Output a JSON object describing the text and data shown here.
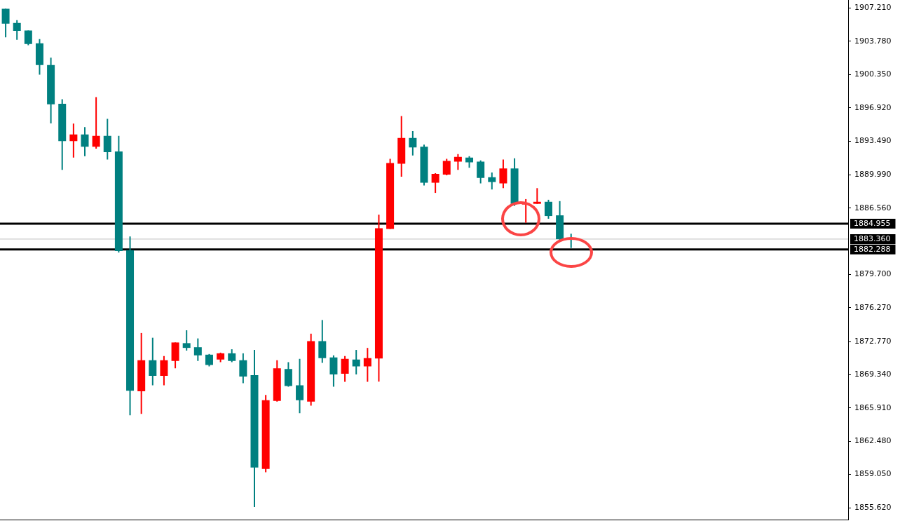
{
  "chart_data": {
    "type": "candlestick",
    "categories": [
      null,
      null,
      null,
      null,
      null,
      null,
      null,
      null,
      null,
      null,
      null,
      null,
      null,
      null,
      null,
      null,
      null,
      null,
      null,
      null,
      null,
      null,
      null,
      null,
      null,
      null,
      null,
      null,
      null,
      null,
      null,
      null,
      null,
      null,
      null,
      null,
      null,
      null,
      null,
      null,
      null,
      null,
      null,
      null,
      null,
      null,
      null,
      null,
      null,
      null,
      null,
      null,
      null,
      null,
      null,
      null,
      null,
      null,
      null,
      null,
      null,
      null,
      null,
      null,
      null,
      null,
      null,
      null,
      null,
      null,
      null,
      null,
      null,
      null,
      null
    ],
    "ohlc": [
      [
        1907.15,
        1907.15,
        1904.2,
        1905.61
      ],
      [
        1905.68,
        1905.96,
        1903.94,
        1904.86
      ],
      [
        1904.9,
        1904.9,
        1903.38,
        1903.5
      ],
      [
        1903.57,
        1904.01,
        1900.34,
        1901.34
      ],
      [
        1901.34,
        1902.1,
        1895.31,
        1897.27
      ],
      [
        1897.34,
        1897.81,
        1890.51,
        1893.48
      ],
      [
        1893.48,
        1895.29,
        1891.78,
        1894.16
      ],
      [
        1894.16,
        1894.93,
        1891.92,
        1892.9
      ],
      [
        1892.9,
        1898.02,
        1892.69,
        1894.02
      ],
      [
        1894.02,
        1895.78,
        1891.57,
        1892.34
      ],
      [
        1892.41,
        1894.02,
        1881.97,
        1882.12
      ],
      [
        1882.21,
        1883.63,
        1865.17,
        1867.7
      ],
      [
        1867.65,
        1873.66,
        1865.31,
        1870.85
      ],
      [
        1870.85,
        1873.17,
        1868.26,
        1869.24
      ],
      [
        1869.24,
        1871.28,
        1868.26,
        1870.85
      ],
      [
        1870.78,
        1872.68,
        1870.01,
        1872.68
      ],
      [
        1872.61,
        1873.94,
        1871.84,
        1872.12
      ],
      [
        1872.19,
        1873.1,
        1870.78,
        1871.35
      ],
      [
        1871.42,
        1871.49,
        1870.22,
        1870.36
      ],
      [
        1870.92,
        1871.63,
        1870.64,
        1871.56
      ],
      [
        1871.56,
        1871.98,
        1870.64,
        1870.78
      ],
      [
        1870.85,
        1871.56,
        1868.47,
        1869.17
      ],
      [
        1869.31,
        1871.91,
        1855.69,
        1859.76
      ],
      [
        1859.62,
        1867.27,
        1859.27,
        1866.71
      ],
      [
        1866.64,
        1870.85,
        1866.57,
        1870.01
      ],
      [
        1869.94,
        1870.64,
        1868.12,
        1868.19
      ],
      [
        1868.26,
        1870.99,
        1865.38,
        1866.71
      ],
      [
        1866.57,
        1873.59,
        1866.15,
        1872.82
      ],
      [
        1872.82,
        1875.0,
        1870.57,
        1871.07
      ],
      [
        1871.14,
        1871.35,
        1868.12,
        1869.38
      ],
      [
        1869.45,
        1871.28,
        1868.61,
        1870.99
      ],
      [
        1870.92,
        1871.91,
        1869.38,
        1870.22
      ],
      [
        1870.22,
        1872.12,
        1868.61,
        1871.07
      ],
      [
        1871.02,
        1885.88,
        1868.63,
        1884.47
      ],
      [
        1884.4,
        1891.64,
        1884.4,
        1891.21
      ],
      [
        1891.14,
        1896.06,
        1889.81,
        1893.81
      ],
      [
        1893.81,
        1894.51,
        1891.99,
        1892.83
      ],
      [
        1892.9,
        1893.11,
        1888.9,
        1889.18
      ],
      [
        1889.18,
        1890.16,
        1888.13,
        1890.09
      ],
      [
        1890.02,
        1891.64,
        1889.95,
        1891.43
      ],
      [
        1891.35,
        1892.13,
        1890.51,
        1891.85
      ],
      [
        1891.78,
        1891.92,
        1890.72,
        1891.28
      ],
      [
        1891.35,
        1891.49,
        1889.11,
        1889.67
      ],
      [
        1889.74,
        1890.23,
        1888.48,
        1889.25
      ],
      [
        1889.11,
        1891.57,
        1888.62,
        1890.65
      ],
      [
        1890.65,
        1891.71,
        1886.79,
        1887.0
      ],
      [
        1886.93,
        1887.49,
        1885.04,
        1887.07
      ],
      [
        1887.0,
        1888.62,
        1887.0,
        1887.21
      ],
      [
        1887.21,
        1887.42,
        1885.46,
        1885.74
      ],
      [
        1885.81,
        1887.28,
        1883.28,
        1883.35
      ],
      [
        1883.42,
        1883.91,
        1882.44,
        1883.36
      ],
      null,
      null,
      null,
      null,
      null,
      null,
      null,
      null,
      null,
      null,
      null,
      null,
      null,
      null,
      null,
      null,
      null,
      null,
      null,
      null,
      null,
      null,
      null,
      null
    ],
    "colors": [
      "#008080",
      "#008080",
      "#008080",
      "#008080",
      "#008080",
      "#008080",
      "#ff0000",
      "#008080",
      "#ff0000",
      "#008080",
      "#008080",
      "#008080",
      "#ff0000",
      "#008080",
      "#ff0000",
      "#ff0000",
      "#008080",
      "#008080",
      "#008080",
      "#ff0000",
      "#008080",
      "#008080",
      "#008080",
      "#ff0000",
      "#ff0000",
      "#008080",
      "#008080",
      "#ff0000",
      "#008080",
      "#008080",
      "#ff0000",
      "#008080",
      "#ff0000",
      "#ff0000",
      "#ff0000",
      "#ff0000",
      "#008080",
      "#008080",
      "#ff0000",
      "#ff0000",
      "#ff0000",
      "#008080",
      "#008080",
      "#008080",
      "#ff0000",
      "#008080",
      "#ff0000",
      "#ff0000",
      "#008080",
      "#008080",
      "#008080",
      null,
      null,
      null,
      null,
      null,
      null,
      null,
      null,
      null,
      null,
      null,
      null,
      null,
      null,
      null,
      null,
      null,
      null,
      null,
      null,
      null,
      null,
      null,
      null
    ],
    "ylim": [
      1854.36,
      1907.21
    ],
    "yticks": [
      {
        "value": 1855.62,
        "label": "1855.620"
      },
      {
        "value": 1859.05,
        "label": "1859.050"
      },
      {
        "value": 1862.48,
        "label": "1862.480"
      },
      {
        "value": 1865.91,
        "label": "1865.910"
      },
      {
        "value": 1869.34,
        "label": "1869.340"
      },
      {
        "value": 1872.77,
        "label": "1872.770"
      },
      {
        "value": 1876.27,
        "label": "1876.270"
      },
      {
        "value": 1879.7,
        "label": "1879.700"
      },
      {
        "value": 1886.56,
        "label": "1886.560"
      },
      {
        "value": 1889.99,
        "label": "1889.990"
      },
      {
        "value": 1893.49,
        "label": "1893.490"
      },
      {
        "value": 1896.92,
        "label": "1896.920"
      },
      {
        "value": 1900.35,
        "label": "1900.350"
      },
      {
        "value": 1903.78,
        "label": "1903.780"
      },
      {
        "value": 1907.21,
        "label": "1907.210"
      }
    ],
    "ref_lines": [
      {
        "axis": "y",
        "value": 1884.955,
        "label": "1884.955",
        "color": "#000000"
      },
      {
        "axis": "y",
        "value": 1883.36,
        "label": "1883.360",
        "color": "#c0c0c0"
      },
      {
        "axis": "y",
        "value": 1882.288,
        "label": "1882.288",
        "color": "#000000"
      }
    ],
    "tick_labels": "y",
    "grid": false,
    "legend": false
  }
}
